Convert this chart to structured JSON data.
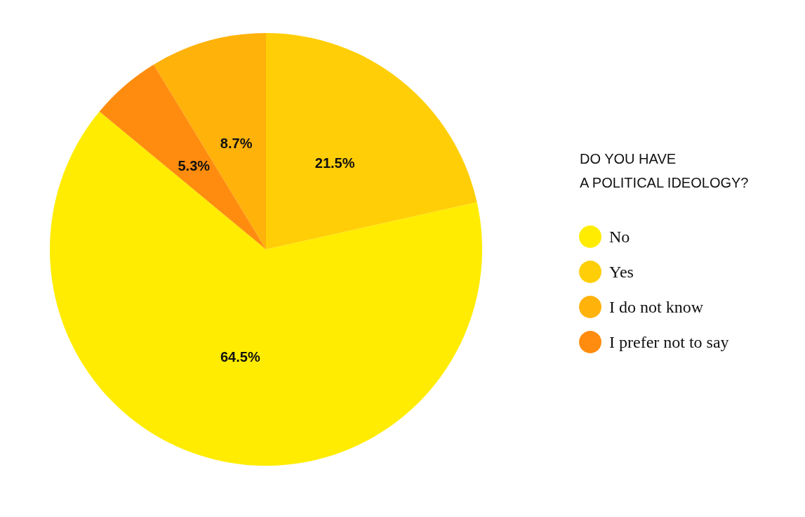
{
  "chart_data": {
    "type": "pie",
    "legend_title": "DO YOU HAVE\nA POLITICAL IDEOLOGY?",
    "categories": [
      "No",
      "Yes",
      "I do not know",
      "I prefer not to say"
    ],
    "values": [
      64.5,
      21.5,
      8.7,
      5.3
    ],
    "value_labels": [
      "64.5%",
      "21.5%",
      "8.7%",
      "5.3%"
    ],
    "colors": [
      "#ffec00",
      "#ffce06",
      "#ffb20a",
      "#ff8c0e"
    ],
    "legend": "right"
  }
}
